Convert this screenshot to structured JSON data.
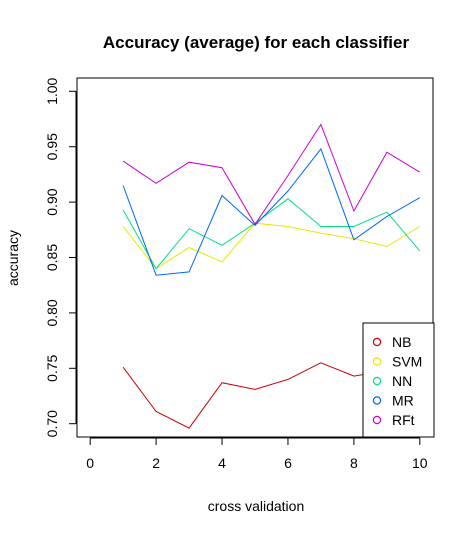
{
  "chart_data": {
    "type": "line",
    "title": "Accuracy (average) for each classifier",
    "xlabel": "cross validation",
    "ylabel": "accuracy",
    "xlim": [
      -0.4,
      10.4
    ],
    "ylim": [
      0.688,
      1.012
    ],
    "xticks": [
      0,
      2,
      4,
      6,
      8,
      10
    ],
    "yticks": [
      0.7,
      0.75,
      0.8,
      0.85,
      0.9,
      0.95,
      1.0
    ],
    "ytick_labels": [
      "0.70",
      "0.75",
      "0.80",
      "0.85",
      "0.90",
      "0.95",
      "1.00"
    ],
    "grid": false,
    "legend_position": "bottom-right",
    "x": [
      1,
      2,
      3,
      4,
      5,
      6,
      7,
      8,
      9,
      10
    ],
    "series": [
      {
        "name": "NB",
        "color": "#cc0000",
        "values": [
          0.751,
          0.711,
          0.696,
          0.737,
          0.731,
          0.74,
          0.755,
          0.743,
          0.748,
          0.735
        ]
      },
      {
        "name": "SVM",
        "color": "#e8e800",
        "values": [
          0.878,
          0.84,
          0.859,
          0.846,
          0.881,
          0.878,
          0.872,
          0.867,
          0.86,
          0.878
        ]
      },
      {
        "name": "NN",
        "color": "#00e080",
        "values": [
          0.893,
          0.84,
          0.876,
          0.861,
          0.881,
          0.903,
          0.878,
          0.878,
          0.891,
          0.856
        ]
      },
      {
        "name": "MR",
        "color": "#0066ff",
        "values": [
          0.915,
          0.834,
          0.837,
          0.906,
          0.879,
          0.91,
          0.948,
          0.866,
          0.887,
          0.904
        ]
      },
      {
        "name": "RFt",
        "color": "#cc00cc",
        "values": [
          0.937,
          0.917,
          0.936,
          0.931,
          0.88,
          0.924,
          0.97,
          0.892,
          0.945,
          0.927
        ]
      }
    ]
  }
}
